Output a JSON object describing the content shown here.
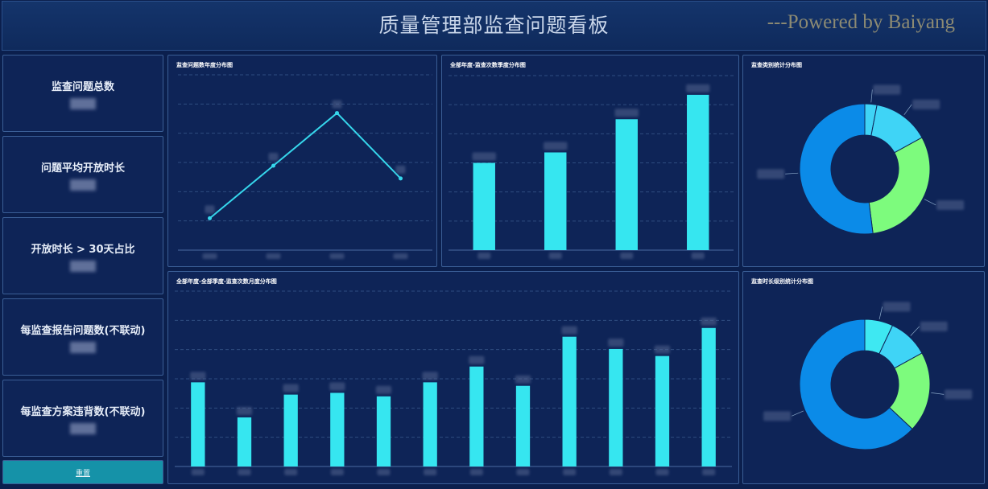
{
  "header": {
    "title": "质量管理部监查问题看板",
    "credit": "---Powered by Baiyang"
  },
  "kpis": [
    {
      "label": "监查问题总数"
    },
    {
      "label": "问题平均开放时长"
    },
    {
      "label": "开放时长 > 30天占比"
    },
    {
      "label": "每监查报告问题数(不联动)"
    },
    {
      "label": "每监查方案违背数(不联动)"
    }
  ],
  "reset_label": "重置",
  "colors": {
    "bar": "#36e6f0",
    "line": "#36d7ec",
    "donut_blue": "#0b8be8",
    "donut_cyan": "#3fd4f6",
    "donut_green": "#7dfb7d",
    "donut_teal": "#3ee8f2"
  },
  "chart_data": [
    {
      "type": "line",
      "title": "监查问题数年度分布图",
      "values": [
        20,
        53,
        86,
        45
      ],
      "ylim": [
        0,
        110
      ]
    },
    {
      "type": "bar",
      "title": "全部年度-监查次数季度分布图",
      "values": [
        50,
        56,
        75,
        89
      ],
      "ylim": [
        0,
        100
      ]
    },
    {
      "type": "pie",
      "title": "监查类别统计分布图",
      "slices": [
        {
          "value": 3,
          "color": "#3fd4f6"
        },
        {
          "value": 14,
          "color": "#3fd4f6"
        },
        {
          "value": 31,
          "color": "#7dfb7d"
        },
        {
          "value": 52,
          "color": "#0b8be8"
        }
      ]
    },
    {
      "type": "bar",
      "title": "全部年度-全部季度-监查次数月度分布图",
      "values": [
        48,
        28,
        41,
        42,
        40,
        48,
        57,
        46,
        74,
        67,
        63,
        79
      ],
      "ylim": [
        0,
        100
      ]
    },
    {
      "type": "pie",
      "title": "监查时长级别统计分布图",
      "slices": [
        {
          "value": 7,
          "color": "#3ee8f2"
        },
        {
          "value": 10,
          "color": "#3fd4f6"
        },
        {
          "value": 20,
          "color": "#7dfb7d"
        },
        {
          "value": 63,
          "color": "#0b8be8"
        }
      ]
    }
  ]
}
